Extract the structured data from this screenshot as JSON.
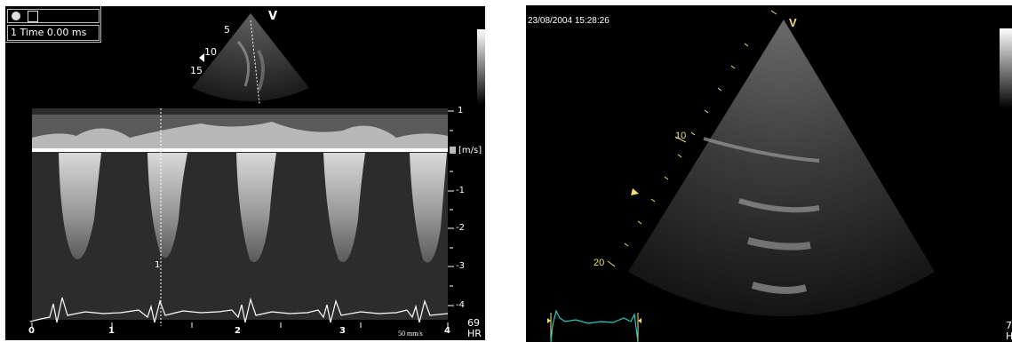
{
  "left_panel": {
    "header": {
      "record_icon": "record-dot-icon",
      "capture_icon": "cursor-icon",
      "time_label": "1 Time 0.00 ms"
    },
    "sector": {
      "marker": "V",
      "depth_labels": [
        "5",
        "10",
        "15"
      ]
    },
    "velocity_scale": {
      "ticks": [
        "1",
        "-1",
        "-2",
        "-3",
        "-4"
      ],
      "unit": "[m/s]"
    },
    "time_axis": {
      "ticks": [
        "0",
        "1",
        "2",
        "3",
        "4"
      ],
      "sweep": "50 mm/s"
    },
    "cursor_number": "1",
    "hr": {
      "value": "69",
      "unit": "HR"
    }
  },
  "right_panel": {
    "timestamp": "23/08/2004 15:28:26",
    "marker": "V",
    "depth_labels": [
      "10",
      "20"
    ],
    "hr": {
      "value": "7",
      "unit": "HR"
    }
  },
  "colors": {
    "annotation_yellow": "#f2e06a",
    "ecg_cyan": "#29c9c0",
    "background": "#000000"
  }
}
